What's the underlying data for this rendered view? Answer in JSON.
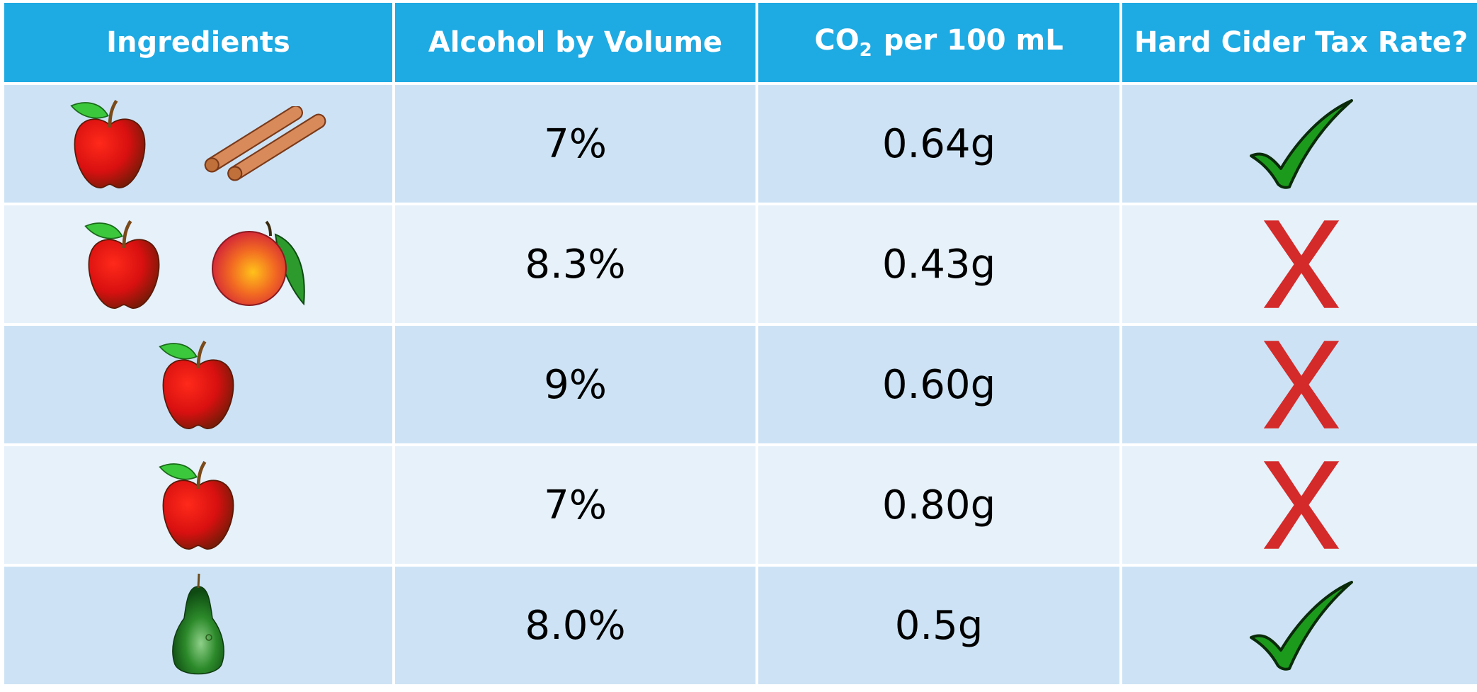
{
  "table": {
    "header": [
      "Ingredients",
      "Alcohol by Volume",
      {
        "text": "CO",
        "subscript": "2",
        "suffix": "per 100 mL"
      },
      "Hard Cider Tax Rate?"
    ],
    "rows": [
      [
        "7%",
        "0.64g"
      ],
      [
        "8.3%",
        "0.43g"
      ],
      [
        "9%",
        "0.60g"
      ],
      [
        "7%",
        "0.80g"
      ],
      [
        "8.0%",
        "0.5g"
      ]
    ]
  }
}
